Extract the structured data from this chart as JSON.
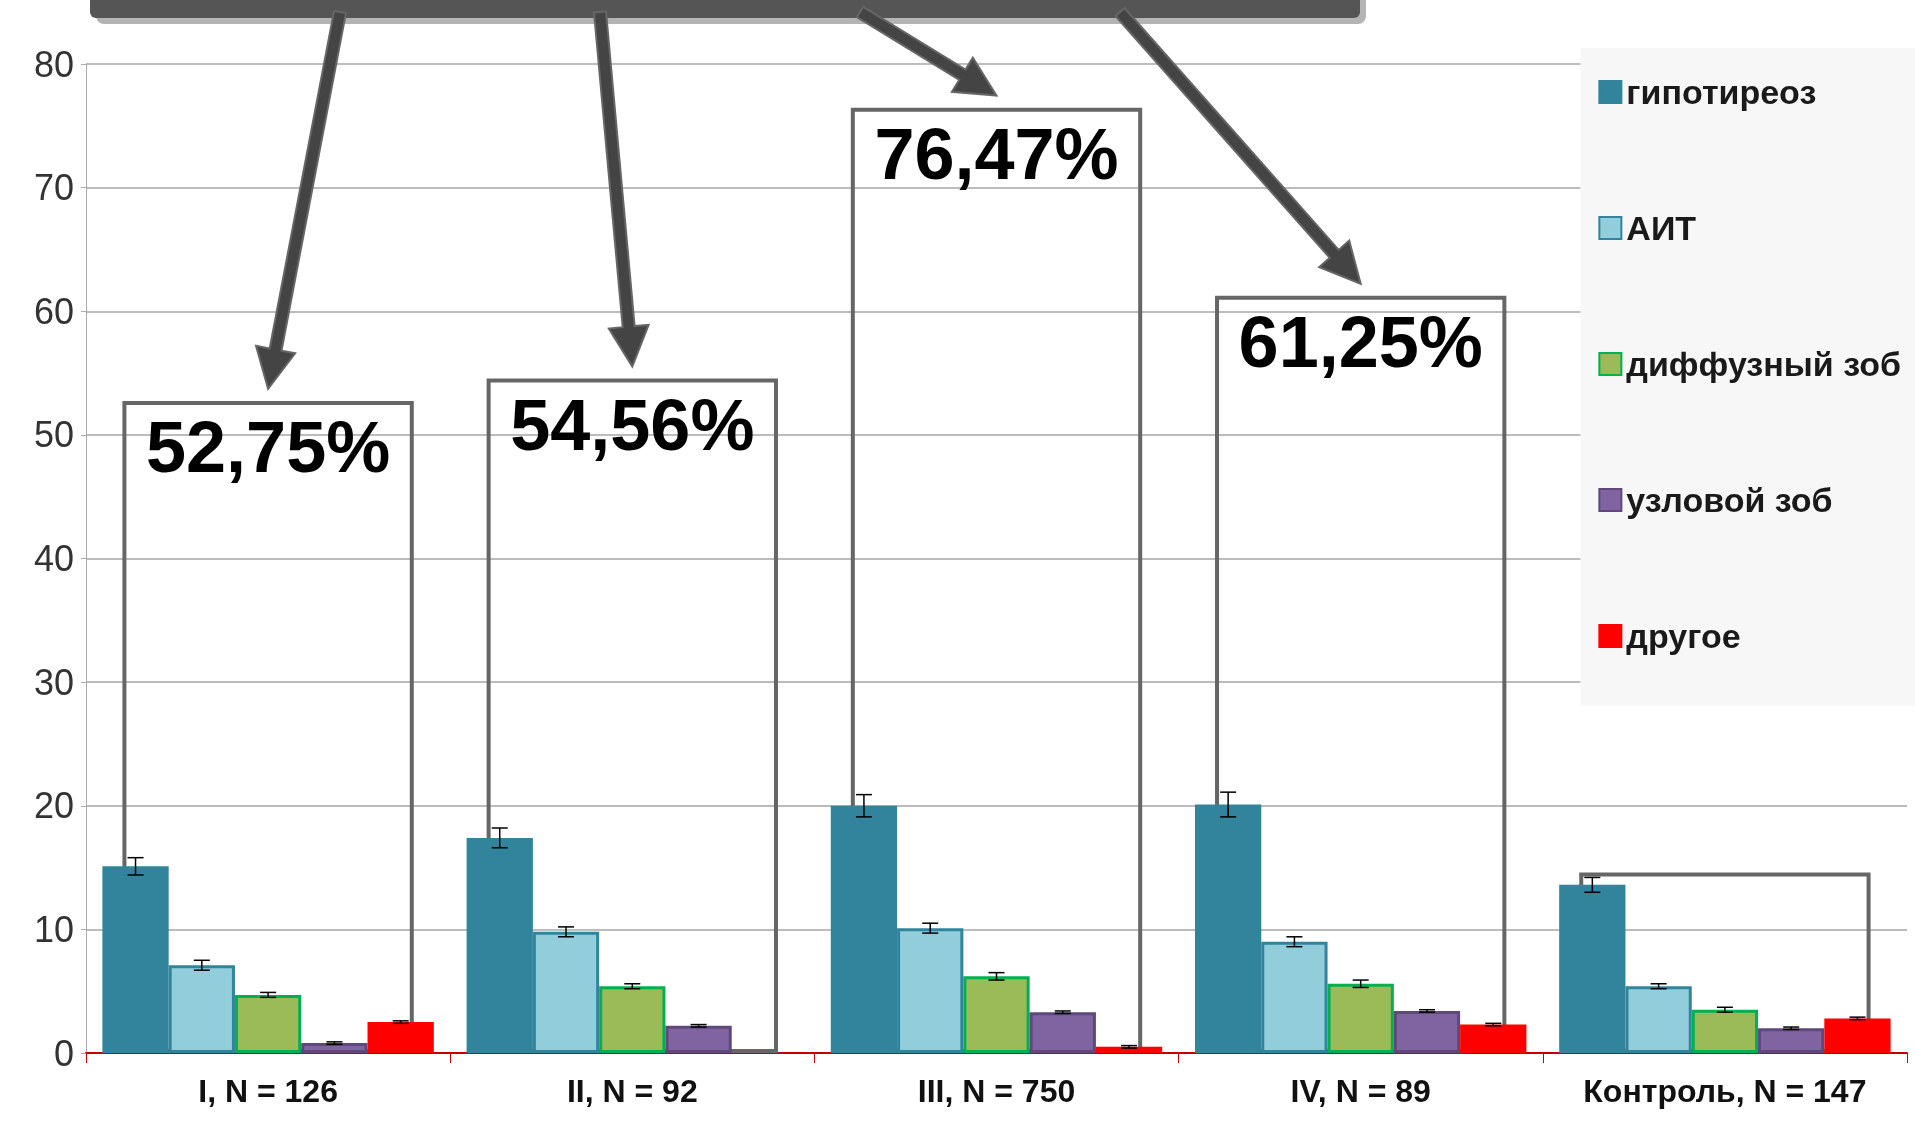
{
  "chart_data": {
    "type": "bar",
    "categories": [
      "I, N = 126",
      "II, N = 92",
      "III, N = 750",
      "IV, N = 89",
      "Контроль, N = 147"
    ],
    "series": [
      {
        "name": "гипотиреоз",
        "color": "#31849b",
        "values": [
          15.1,
          17.4,
          20.0,
          20.1,
          13.6
        ],
        "errors": [
          0.7,
          0.8,
          0.9,
          1.0,
          0.6
        ]
      },
      {
        "name": "АИТ",
        "color": "#92cddc",
        "values": [
          7.1,
          9.8,
          10.1,
          9.0,
          5.4
        ],
        "errors": [
          0.4,
          0.4,
          0.4,
          0.4,
          0.2
        ]
      },
      {
        "name": "диффузный зоб",
        "color": "#9bbb59",
        "values": [
          4.7,
          5.4,
          6.2,
          5.6,
          3.5
        ],
        "errors": [
          0.2,
          0.2,
          0.3,
          0.3,
          0.2
        ]
      },
      {
        "name": "узловой зоб",
        "color": "#8064a2",
        "values": [
          0.8,
          2.2,
          3.3,
          3.4,
          2.0
        ],
        "errors": [
          0.1,
          0.1,
          0.1,
          0.1,
          0.1
        ]
      },
      {
        "name": "другое",
        "color": "#ff0000",
        "values": [
          2.5,
          null,
          0.5,
          2.3,
          2.8
        ],
        "errors": [
          0.1,
          null,
          0.1,
          0.1,
          0.1
        ]
      },
      {
        "color": "#666666",
        "values": [
          52.75,
          54.56,
          76.47,
          61.25,
          14.6
        ],
        "value_labels": [
          "52,75%",
          "54,56%",
          "76,47%",
          "61,25%",
          null
        ]
      }
    ],
    "ylim": [
      0,
      80
    ],
    "yticks": [
      0,
      10,
      20,
      30,
      40,
      50,
      60,
      70,
      80
    ],
    "grid": "y",
    "legend": "top right"
  }
}
